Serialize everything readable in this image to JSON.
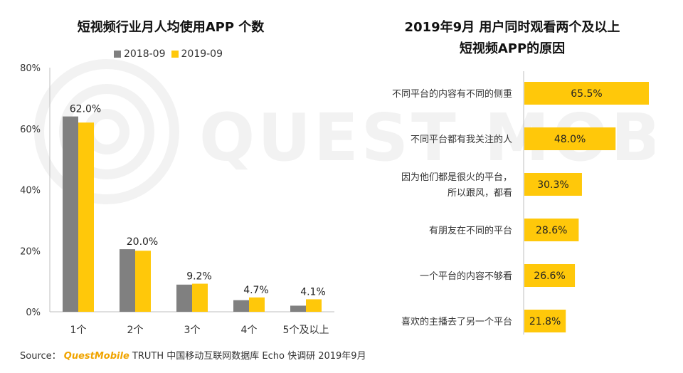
{
  "colors": {
    "series_2018": "#808080",
    "series_2019": "#FFC80A",
    "brand": "#F0A400",
    "axis": "#BFBFBF"
  },
  "watermark": "QUEST MOBILE",
  "footer": {
    "source_label": "Source：",
    "brand": "QuestMobile",
    "text": "TRUTH 中国移动互联网数据库 Echo 快调研 2019年9月"
  },
  "chart_data": [
    {
      "type": "bar",
      "title": "短视频行业月人均使用APP 个数",
      "categories": [
        "1个",
        "2个",
        "3个",
        "4个",
        "5个及以上"
      ],
      "series": [
        {
          "name": "2018-09",
          "values": [
            64.0,
            20.5,
            8.9,
            3.8,
            2.0
          ]
        },
        {
          "name": "2019-09",
          "values": [
            62.0,
            20.0,
            9.2,
            4.7,
            4.1
          ]
        }
      ],
      "data_labels": [
        "62.0%",
        "20.0%",
        "9.2%",
        "4.7%",
        "4.1%"
      ],
      "yticks": [
        "0%",
        "20%",
        "40%",
        "60%",
        "80%"
      ],
      "ylim": [
        0,
        80
      ],
      "legend": "top-left",
      "xlabel": "",
      "ylabel": ""
    },
    {
      "type": "bar",
      "orientation": "horizontal",
      "title_line1": "2019年9月 用户同时观看两个及以上",
      "title_line2": "短视频APP的原因",
      "categories": [
        [
          "不同平台的内容有不同的侧重"
        ],
        [
          "不同平台都有我关注的人"
        ],
        [
          "因为他们都是很火的平台，",
          "所以跟风，都看"
        ],
        [
          "有朋友在不同的平台"
        ],
        [
          "一个平台的内容不够看"
        ],
        [
          "喜欢的主播去了另一个平台"
        ]
      ],
      "values": [
        65.5,
        48.0,
        30.3,
        28.6,
        26.6,
        21.8
      ],
      "data_labels": [
        "65.5%",
        "48.0%",
        "30.3%",
        "28.6%",
        "26.6%",
        "21.8%"
      ],
      "xlim": [
        0,
        65.5
      ]
    }
  ]
}
